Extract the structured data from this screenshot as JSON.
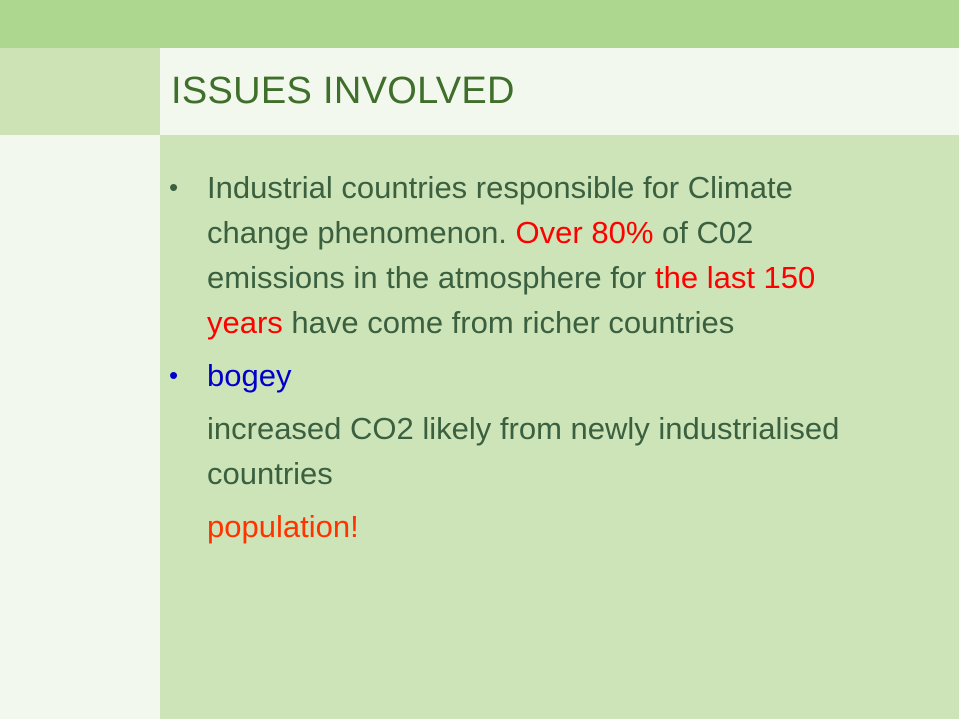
{
  "title": "ISSUES INVOLVED",
  "bullets": [
    {
      "parts": [
        "Industrial countries responsible for Climate change phenomenon. ",
        "Over 80%",
        " of C02 emissions in the atmosphere for ",
        "the last 150 years",
        " have come from richer countries"
      ]
    },
    {
      "text": "bogey"
    }
  ],
  "paragraphs": [
    "increased CO2 likely from newly industrialised countries",
    "population!"
  ],
  "colors": {
    "top_band": "#add78f",
    "body": "#cde3b8",
    "title": "#3f6f2a",
    "text": "#3a6040",
    "highlight_red": "#ff0000",
    "bogey_blue": "#0000cc",
    "population_orange": "#ff3300"
  }
}
